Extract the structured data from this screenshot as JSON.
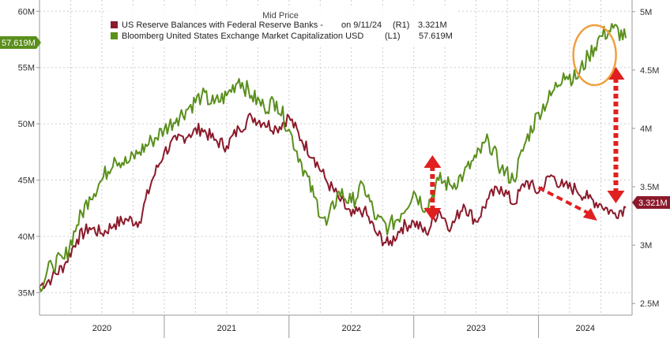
{
  "chart_data": {
    "type": "line",
    "title": "",
    "xlabel": "",
    "ylabel": "",
    "legend": {
      "title": "Mid Price",
      "placement": "top-center",
      "entries": [
        {
          "label": "US Reserve Balances with Federal Reserve Banks -",
          "date_note": "on 9/11/24",
          "axis": "(R1)",
          "last": "3.321M",
          "color": "#8b1a2b"
        },
        {
          "label": "Bloomberg United States Exchange Market Capitalization USD",
          "date_note": "",
          "axis": "(L1)",
          "last": "57.619M",
          "color": "#5a8f1c"
        }
      ]
    },
    "x_categories": [
      "2020",
      "2021",
      "2022",
      "2023",
      "2024"
    ],
    "x_range": [
      2020.0,
      2024.75
    ],
    "left_axis": {
      "ticks": [
        "35M",
        "40M",
        "45M",
        "50M",
        "55M",
        "60M"
      ],
      "range": [
        33,
        61
      ],
      "last_value_label": "57.619M"
    },
    "right_axis": {
      "ticks": [
        "2.5M",
        "3M",
        "3.5M",
        "4M",
        "4.5M",
        "5M"
      ],
      "range": [
        2.4,
        5.1
      ],
      "last_value_label": "3.321M"
    },
    "grid": true,
    "series": [
      {
        "name": "US Reserve Balances with Federal Reserve Banks",
        "axis": "right",
        "color": "#8b1a2b",
        "x": [
          2020.0,
          2020.1,
          2020.2,
          2020.3,
          2020.4,
          2020.5,
          2020.6,
          2020.7,
          2020.8,
          2020.9,
          2021.0,
          2021.1,
          2021.2,
          2021.3,
          2021.4,
          2021.5,
          2021.6,
          2021.7,
          2021.8,
          2021.9,
          2022.0,
          2022.1,
          2022.2,
          2022.3,
          2022.4,
          2022.5,
          2022.6,
          2022.7,
          2022.8,
          2022.9,
          2023.0,
          2023.1,
          2023.2,
          2023.3,
          2023.4,
          2023.5,
          2023.6,
          2023.7,
          2023.8,
          2023.9,
          2024.0,
          2024.1,
          2024.2,
          2024.3,
          2024.4,
          2024.5,
          2024.6,
          2024.7
        ],
        "values": [
          2.65,
          2.72,
          2.83,
          3.05,
          3.15,
          3.1,
          3.18,
          3.22,
          3.2,
          3.55,
          3.8,
          3.9,
          3.95,
          4.0,
          3.9,
          3.85,
          4.0,
          4.1,
          4.05,
          4.0,
          4.1,
          3.9,
          3.75,
          3.55,
          3.4,
          3.25,
          3.3,
          3.1,
          3.0,
          3.15,
          3.2,
          3.1,
          3.3,
          3.15,
          3.35,
          3.2,
          3.4,
          3.5,
          3.35,
          3.55,
          3.45,
          3.6,
          3.5,
          3.48,
          3.4,
          3.35,
          3.27,
          3.321
        ]
      },
      {
        "name": "Bloomberg United States Exchange Market Capitalization USD",
        "axis": "left",
        "color": "#5a8f1c",
        "x": [
          2020.0,
          2020.1,
          2020.2,
          2020.3,
          2020.4,
          2020.5,
          2020.6,
          2020.7,
          2020.8,
          2020.9,
          2021.0,
          2021.1,
          2021.2,
          2021.3,
          2021.4,
          2021.5,
          2021.6,
          2021.7,
          2021.8,
          2021.9,
          2022.0,
          2022.1,
          2022.2,
          2022.3,
          2022.4,
          2022.5,
          2022.6,
          2022.7,
          2022.8,
          2022.9,
          2023.0,
          2023.1,
          2023.2,
          2023.3,
          2023.4,
          2023.5,
          2023.6,
          2023.7,
          2023.8,
          2023.9,
          2024.0,
          2024.1,
          2024.2,
          2024.3,
          2024.4,
          2024.5,
          2024.6,
          2024.7
        ],
        "values": [
          35.5,
          37.5,
          38.0,
          41.0,
          43.5,
          45.0,
          47.0,
          46.5,
          47.5,
          48.5,
          49.5,
          50.5,
          51.5,
          52.5,
          51.8,
          52.5,
          54.0,
          52.5,
          51.5,
          52.0,
          49.5,
          46.5,
          43.5,
          41.0,
          44.0,
          43.0,
          44.5,
          41.5,
          40.8,
          42.0,
          44.0,
          42.5,
          45.0,
          44.5,
          45.5,
          47.0,
          48.5,
          46.0,
          45.0,
          48.5,
          51.0,
          52.5,
          54.5,
          54.0,
          56.0,
          57.8,
          58.5,
          57.619
        ]
      }
    ]
  }
}
